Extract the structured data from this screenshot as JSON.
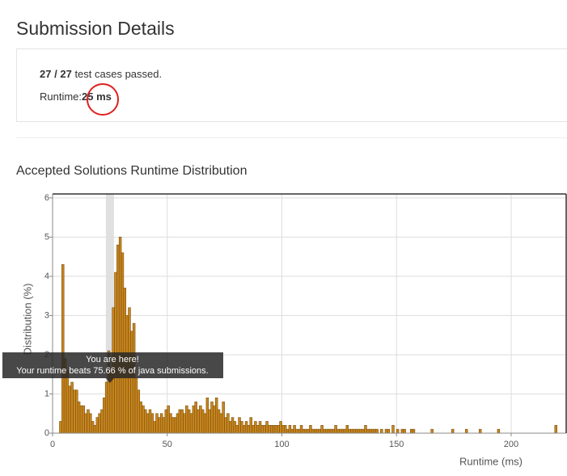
{
  "header": {
    "title": "Submission Details"
  },
  "summary": {
    "passed": "27",
    "separator": "/",
    "total": "27",
    "label": "test cases passed."
  },
  "runtime": {
    "label": "Runtime:",
    "value": "25 ms"
  },
  "chart_data": {
    "type": "histogram",
    "title": "Accepted Solutions Runtime Distribution",
    "x_label": "Runtime (ms)",
    "y_label": "Distribution (%)",
    "color": "#c8861f",
    "edge_color": "#7a4e0c",
    "grid": true,
    "highlight": 25,
    "annotation": [
      "You are here!",
      "Your runtime beats 75.66 % of java submissions."
    ],
    "xlim": [
      0,
      224
    ],
    "ylim": [
      0,
      6.1
    ],
    "xticks": [
      0,
      50,
      100,
      150,
      200
    ],
    "yticks": [
      0,
      1,
      2,
      3,
      4,
      5,
      6
    ],
    "bins": [
      3,
      4,
      5,
      6,
      7,
      8,
      9,
      10,
      11,
      12,
      13,
      14,
      15,
      16,
      17,
      18,
      19,
      20,
      21,
      22,
      23,
      24,
      25,
      26,
      27,
      28,
      29,
      30,
      31,
      32,
      33,
      34,
      35,
      36,
      37,
      38,
      39,
      40,
      41,
      42,
      43,
      44,
      45,
      46,
      47,
      48,
      49,
      50,
      51,
      52,
      53,
      54,
      55,
      56,
      57,
      58,
      59,
      60,
      61,
      62,
      63,
      64,
      65,
      66,
      67,
      68,
      69,
      70,
      71,
      72,
      73,
      74,
      75,
      76,
      77,
      78,
      79,
      80,
      81,
      82,
      83,
      84,
      85,
      86,
      87,
      88,
      89,
      90,
      91,
      92,
      93,
      94,
      95,
      96,
      97,
      98,
      99,
      100,
      101,
      102,
      103,
      104,
      105,
      106,
      107,
      108,
      109,
      110,
      111,
      112,
      113,
      114,
      115,
      116,
      117,
      118,
      119,
      120,
      121,
      122,
      123,
      124,
      125,
      126,
      127,
      128,
      129,
      130,
      131,
      132,
      133,
      134,
      135,
      136,
      137,
      138,
      139,
      140,
      141,
      142,
      143,
      144,
      145,
      146,
      147,
      148,
      149,
      150,
      151,
      152,
      153,
      154,
      155,
      156,
      157,
      158,
      159,
      160,
      161,
      162,
      163,
      164,
      165,
      166,
      167,
      168,
      169,
      170,
      171,
      172,
      173,
      174,
      175,
      176,
      177,
      178,
      179,
      180,
      181,
      182,
      183,
      184,
      185,
      186,
      187,
      188,
      189,
      190,
      191,
      192,
      193,
      194,
      195,
      196,
      197,
      198,
      199,
      200,
      201,
      202,
      203,
      204,
      205,
      206,
      207,
      208,
      209,
      210,
      211,
      212,
      213,
      214,
      215,
      216,
      217,
      218,
      219,
      220,
      221
    ],
    "values": [
      0.3,
      4.3,
      1.9,
      1.6,
      1.2,
      1.3,
      1.1,
      1.1,
      0.8,
      0.7,
      0.7,
      0.5,
      0.6,
      0.5,
      0.3,
      0.2,
      0.4,
      0.5,
      0.6,
      0.9,
      1.3,
      2.1,
      1.6,
      3.2,
      4.1,
      4.8,
      5.0,
      4.6,
      3.7,
      3.0,
      3.2,
      2.6,
      2.8,
      1.4,
      1.1,
      0.8,
      0.7,
      0.6,
      0.5,
      0.6,
      0.5,
      0.3,
      0.5,
      0.4,
      0.5,
      0.4,
      0.6,
      0.7,
      0.5,
      0.4,
      0.4,
      0.5,
      0.6,
      0.6,
      0.5,
      0.7,
      0.6,
      0.5,
      0.7,
      0.8,
      0.6,
      0.7,
      0.6,
      0.5,
      0.9,
      0.6,
      0.8,
      0.7,
      0.9,
      0.6,
      0.5,
      0.8,
      0.4,
      0.5,
      0.3,
      0.4,
      0.3,
      0.2,
      0.4,
      0.3,
      0.2,
      0.3,
      0.2,
      0.4,
      0.2,
      0.3,
      0.2,
      0.3,
      0.2,
      0.2,
      0.3,
      0.2,
      0.2,
      0.2,
      0.2,
      0.2,
      0.3,
      0.2,
      0.2,
      0.1,
      0.2,
      0.1,
      0.2,
      0.1,
      0.1,
      0.2,
      0.1,
      0.1,
      0.1,
      0.2,
      0.1,
      0.1,
      0.1,
      0.1,
      0.2,
      0.1,
      0.1,
      0.1,
      0.1,
      0.1,
      0.2,
      0.1,
      0.1,
      0.1,
      0.1,
      0.2,
      0.1,
      0.1,
      0.1,
      0.1,
      0.1,
      0.1,
      0.1,
      0.2,
      0.1,
      0.1,
      0.1,
      0.1,
      0.1,
      0,
      0.1,
      0,
      0.1,
      0.1,
      0,
      0.2,
      0,
      0.1,
      0,
      0.1,
      0.1,
      0,
      0,
      0.1,
      0.1,
      0,
      0,
      0,
      0,
      0,
      0,
      0,
      0.1,
      0,
      0,
      0,
      0,
      0,
      0,
      0,
      0,
      0.1,
      0,
      0,
      0,
      0,
      0,
      0.1,
      0,
      0,
      0,
      0,
      0,
      0.1,
      0,
      0,
      0,
      0,
      0,
      0,
      0,
      0.1,
      0,
      0,
      0,
      0,
      0,
      0,
      0,
      0,
      0,
      0,
      0,
      0,
      0,
      0,
      0,
      0,
      0,
      0,
      0,
      0,
      0,
      0,
      0,
      0,
      0.2,
      0
    ]
  }
}
